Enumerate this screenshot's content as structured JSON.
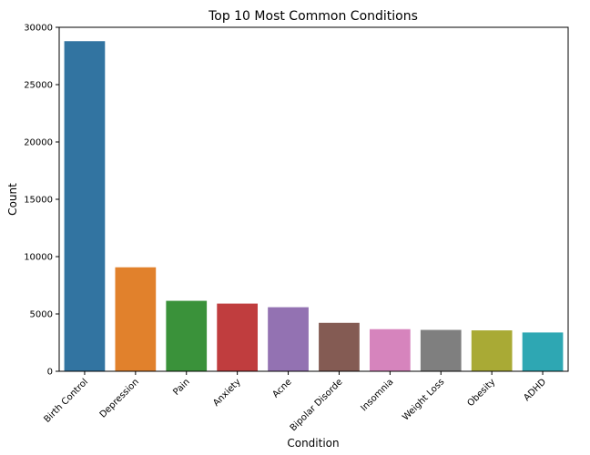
{
  "chart_data": {
    "type": "bar",
    "title": "Top 10 Most Common Conditions",
    "xlabel": "Condition",
    "ylabel": "Count",
    "categories": [
      "Birth Control",
      "Depression",
      "Pain",
      "Anxiety",
      "Acne",
      "Bipolar Disorde",
      "Insomnia",
      "Weight Loss",
      "Obesity",
      "ADHD"
    ],
    "values": [
      28790,
      9069,
      6145,
      5904,
      5588,
      4224,
      3673,
      3609,
      3568,
      3383
    ],
    "colors": [
      "#3274a1",
      "#e1812c",
      "#3a923a",
      "#c03d3e",
      "#9372b2",
      "#845b53",
      "#d684bd",
      "#7f7f7f",
      "#a9aa35",
      "#2ea7b3"
    ],
    "ylim": [
      0,
      30000
    ],
    "yticks": [
      0,
      5000,
      10000,
      15000,
      20000,
      25000,
      30000
    ],
    "grid": false,
    "legend": "none"
  }
}
